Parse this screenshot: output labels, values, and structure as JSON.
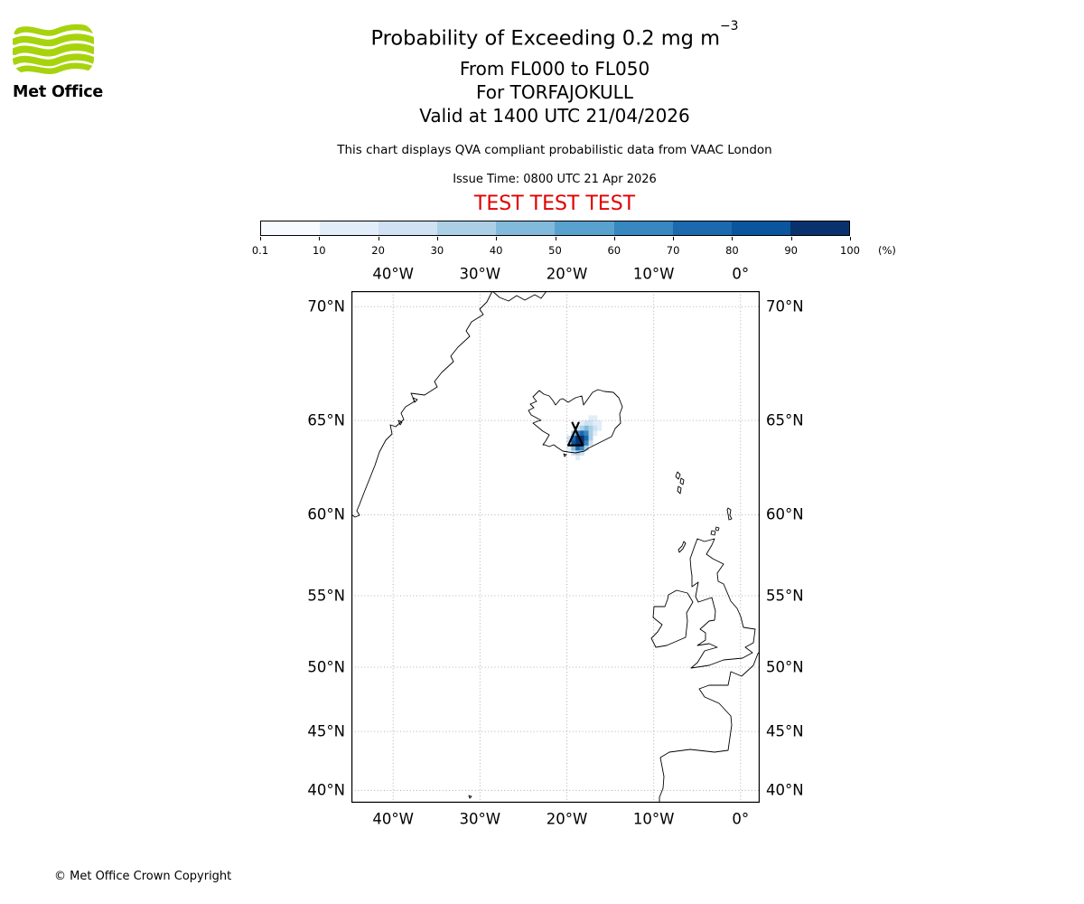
{
  "logo": {
    "brand": "Met Office",
    "wave_color": "#a7d30d"
  },
  "header": {
    "title_main": "Probability of Exceeding 0.2 mg m",
    "title_exponent": "−3",
    "subtitle_lines": [
      "From FL000 to FL050",
      "For TORFAJOKULL",
      "Valid at 1400 UTC 21/04/2026"
    ],
    "description": "This chart displays QVA compliant probabilistic data from VAAC London",
    "issue_time": "Issue Time: 0800 UTC 21 Apr 2026",
    "test_banner": "TEST TEST TEST",
    "test_banner_color": "#e00000"
  },
  "colorbar": {
    "tick_labels": [
      "0.1",
      "10",
      "20",
      "30",
      "40",
      "50",
      "60",
      "70",
      "80",
      "90",
      "100"
    ],
    "unit_label": "(%)",
    "colors": [
      "#f7fbff",
      "#e1edf8",
      "#cfe1f2",
      "#abd0e6",
      "#82badb",
      "#59a1cf",
      "#3787c0",
      "#1b69af",
      "#0b559f",
      "#08316d"
    ]
  },
  "map": {
    "top_lon_labels": [
      "40°W",
      "30°W",
      "20°W",
      "10°W",
      "0°"
    ],
    "bottom_lon_labels": [
      "40°W",
      "30°W",
      "20°W",
      "10°W",
      "0°"
    ],
    "left_lat_labels": [
      "70°N",
      "65°N",
      "60°N",
      "55°N",
      "50°N",
      "45°N",
      "40°N"
    ],
    "right_lat_labels": [
      "70°N",
      "65°N",
      "60°N",
      "55°N",
      "50°N",
      "45°N",
      "40°N"
    ]
  },
  "chart_data": {
    "type": "heatmap",
    "title": "Probability of Exceeding 0.2 mg m-3",
    "threshold": "0.2 mg m-3",
    "flight_levels": "FL000 to FL050",
    "volcano": {
      "name": "TORFAJOKULL",
      "lat": 63.9,
      "lon": -19.0
    },
    "valid_time": "1400 UTC 21/04/2026",
    "issue_time": "0800 UTC 21 Apr 2026",
    "source": "VAAC London",
    "units": "%",
    "prob_bin_edges_pct": [
      0.1,
      10,
      20,
      30,
      40,
      50,
      60,
      70,
      80,
      90,
      100
    ],
    "extent": {
      "lon_min": -44.8,
      "lon_max": 2.2,
      "lat_min": 38.9,
      "lat_max": 70.6
    },
    "grid_lons": [
      -40,
      -30,
      -20,
      -10,
      0
    ],
    "grid_lats": [
      40,
      45,
      50,
      55,
      60,
      65,
      70
    ],
    "cells_format": [
      "lon",
      "lat",
      "probability_pct"
    ],
    "cells": [
      [
        -17.25,
        65.125,
        10
      ],
      [
        -16.75,
        65.125,
        10
      ],
      [
        -18.25,
        64.875,
        10
      ],
      [
        -17.75,
        64.875,
        20
      ],
      [
        -17.25,
        64.875,
        20
      ],
      [
        -16.75,
        64.875,
        10
      ],
      [
        -16.25,
        64.875,
        10
      ],
      [
        -18.75,
        64.625,
        20
      ],
      [
        -18.25,
        64.625,
        30
      ],
      [
        -17.75,
        64.625,
        40
      ],
      [
        -17.25,
        64.625,
        30
      ],
      [
        -16.75,
        64.625,
        20
      ],
      [
        -16.25,
        64.625,
        10
      ],
      [
        -19.25,
        64.375,
        30
      ],
      [
        -18.75,
        64.375,
        60
      ],
      [
        -18.25,
        64.375,
        70
      ],
      [
        -17.75,
        64.375,
        60
      ],
      [
        -17.25,
        64.375,
        30
      ],
      [
        -16.75,
        64.375,
        10
      ],
      [
        -19.75,
        64.125,
        20
      ],
      [
        -19.25,
        64.125,
        70
      ],
      [
        -18.75,
        64.125,
        95
      ],
      [
        -18.25,
        64.125,
        100
      ],
      [
        -17.75,
        64.125,
        70
      ],
      [
        -17.25,
        64.125,
        30
      ],
      [
        -19.75,
        63.875,
        20
      ],
      [
        -19.25,
        63.875,
        80
      ],
      [
        -18.75,
        63.875,
        100
      ],
      [
        -18.25,
        63.875,
        95
      ],
      [
        -17.75,
        63.875,
        60
      ],
      [
        -17.25,
        63.875,
        20
      ],
      [
        -19.75,
        63.625,
        10
      ],
      [
        -19.25,
        63.625,
        40
      ],
      [
        -18.75,
        63.625,
        70
      ],
      [
        -18.25,
        63.625,
        60
      ],
      [
        -17.75,
        63.625,
        30
      ],
      [
        -19.25,
        63.375,
        20
      ],
      [
        -18.75,
        63.375,
        30
      ],
      [
        -18.25,
        63.375,
        20
      ],
      [
        -18.75,
        63.125,
        10
      ]
    ]
  },
  "footer": {
    "copyright": "© Met Office Crown Copyright"
  }
}
